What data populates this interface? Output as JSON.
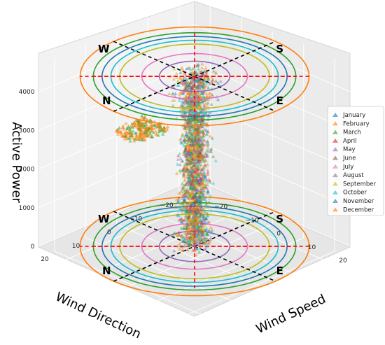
{
  "chart_data": {
    "type": "scatter",
    "subtype": "3d-scatter",
    "xlabel": "Wind Direction",
    "ylabel": "Wind Speed",
    "zlabel": "Active Power",
    "x_ticks": [
      "20",
      "10",
      "0",
      "−10",
      "−20"
    ],
    "y_ticks": [
      "20",
      "10",
      "0",
      "−10",
      "−20"
    ],
    "z_ticks": [
      "0",
      "1000",
      "2000",
      "3000",
      "4000"
    ],
    "xlim": [
      -25,
      25
    ],
    "ylim": [
      -25,
      25
    ],
    "zlim": [
      -300,
      4700
    ],
    "grid": true,
    "legend_position": "right",
    "marker": "triangle",
    "compass": {
      "labels": [
        "N",
        "E",
        "S",
        "W"
      ],
      "planes": [
        0,
        4400
      ],
      "ring_colors": [
        "#ff7f0e",
        "#2ca02c",
        "#1f77b4",
        "#17becf",
        "#bcbd22",
        "#e377c2",
        "#9467bd"
      ],
      "axis_line_colors": {
        "ns": "#000000",
        "we": "#000000",
        "cross": "#ff0000"
      }
    },
    "series": [
      {
        "name": "January",
        "color": "#1f77b4"
      },
      {
        "name": "February",
        "color": "#ff7f0e"
      },
      {
        "name": "March",
        "color": "#2ca02c"
      },
      {
        "name": "April",
        "color": "#d62728"
      },
      {
        "name": "May",
        "color": "#9467bd"
      },
      {
        "name": "June",
        "color": "#8c564b"
      },
      {
        "name": "July",
        "color": "#e377c2"
      },
      {
        "name": "August",
        "color": "#7f7f7f"
      },
      {
        "name": "September",
        "color": "#bcbd22"
      },
      {
        "name": "October",
        "color": "#17becf"
      },
      {
        "name": "November",
        "color": "#1f77b4"
      },
      {
        "name": "December",
        "color": "#ff7f0e"
      }
    ]
  }
}
